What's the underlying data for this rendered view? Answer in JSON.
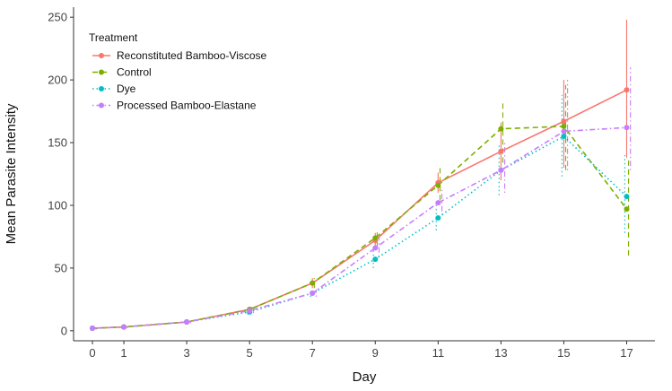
{
  "chart_data": {
    "type": "line",
    "title": "",
    "xlabel": "Day",
    "ylabel": "Mean Parasite Intensity",
    "x": [
      0,
      1,
      3,
      5,
      7,
      9,
      11,
      13,
      15,
      17
    ],
    "x_tick_labels": [
      "0",
      "1",
      "3",
      "5",
      "7",
      "9",
      "11",
      "13",
      "15",
      "17"
    ],
    "y_tick_labels": [
      "0",
      "50",
      "100",
      "150",
      "200",
      "250"
    ],
    "y_ticks": [
      0,
      50,
      100,
      150,
      200,
      250
    ],
    "xlim": [
      -0.6,
      17.9
    ],
    "ylim": [
      -8,
      258
    ],
    "grid": false,
    "legend": {
      "title": "Treatment",
      "placement": "top-left"
    },
    "series": [
      {
        "name": "Reconstituted Bamboo-Viscose",
        "color": "#F8766D",
        "dash": "solid",
        "values": [
          2,
          3,
          7,
          17,
          38,
          72,
          118,
          143,
          167,
          192
        ],
        "err_low": [
          1,
          2,
          6,
          15,
          34,
          66,
          110,
          120,
          130,
          138
        ],
        "err_high": [
          3,
          4,
          8,
          19,
          42,
          78,
          126,
          166,
          200,
          248
        ]
      },
      {
        "name": "Control",
        "color": "#7CAE00",
        "dash": "dashed",
        "values": [
          2,
          3,
          7,
          17,
          38,
          74,
          116,
          161,
          163,
          97
        ],
        "err_low": [
          1,
          2,
          6,
          15,
          34,
          67,
          104,
          134,
          128,
          60
        ],
        "err_high": [
          3,
          4,
          8,
          19,
          42,
          81,
          130,
          183,
          196,
          136
        ]
      },
      {
        "name": "Dye",
        "color": "#00BFC4",
        "dash": "dotted",
        "values": [
          2,
          3,
          7,
          15,
          30,
          57,
          90,
          128,
          155,
          107
        ],
        "err_low": [
          1,
          2,
          6,
          13,
          27,
          50,
          80,
          108,
          123,
          78
        ],
        "err_high": [
          3,
          4,
          8,
          17,
          33,
          64,
          100,
          148,
          188,
          140
        ]
      },
      {
        "name": "Processed Bamboo-Elastane",
        "color": "#C77CFF",
        "dash": "dotdash",
        "values": [
          2,
          3,
          7,
          16,
          30,
          66,
          102,
          128,
          159,
          162
        ],
        "err_low": [
          1,
          2,
          6,
          14,
          27,
          59,
          92,
          110,
          128,
          128
        ],
        "err_high": [
          3,
          4,
          8,
          18,
          33,
          74,
          115,
          150,
          200,
          210
        ]
      }
    ]
  }
}
